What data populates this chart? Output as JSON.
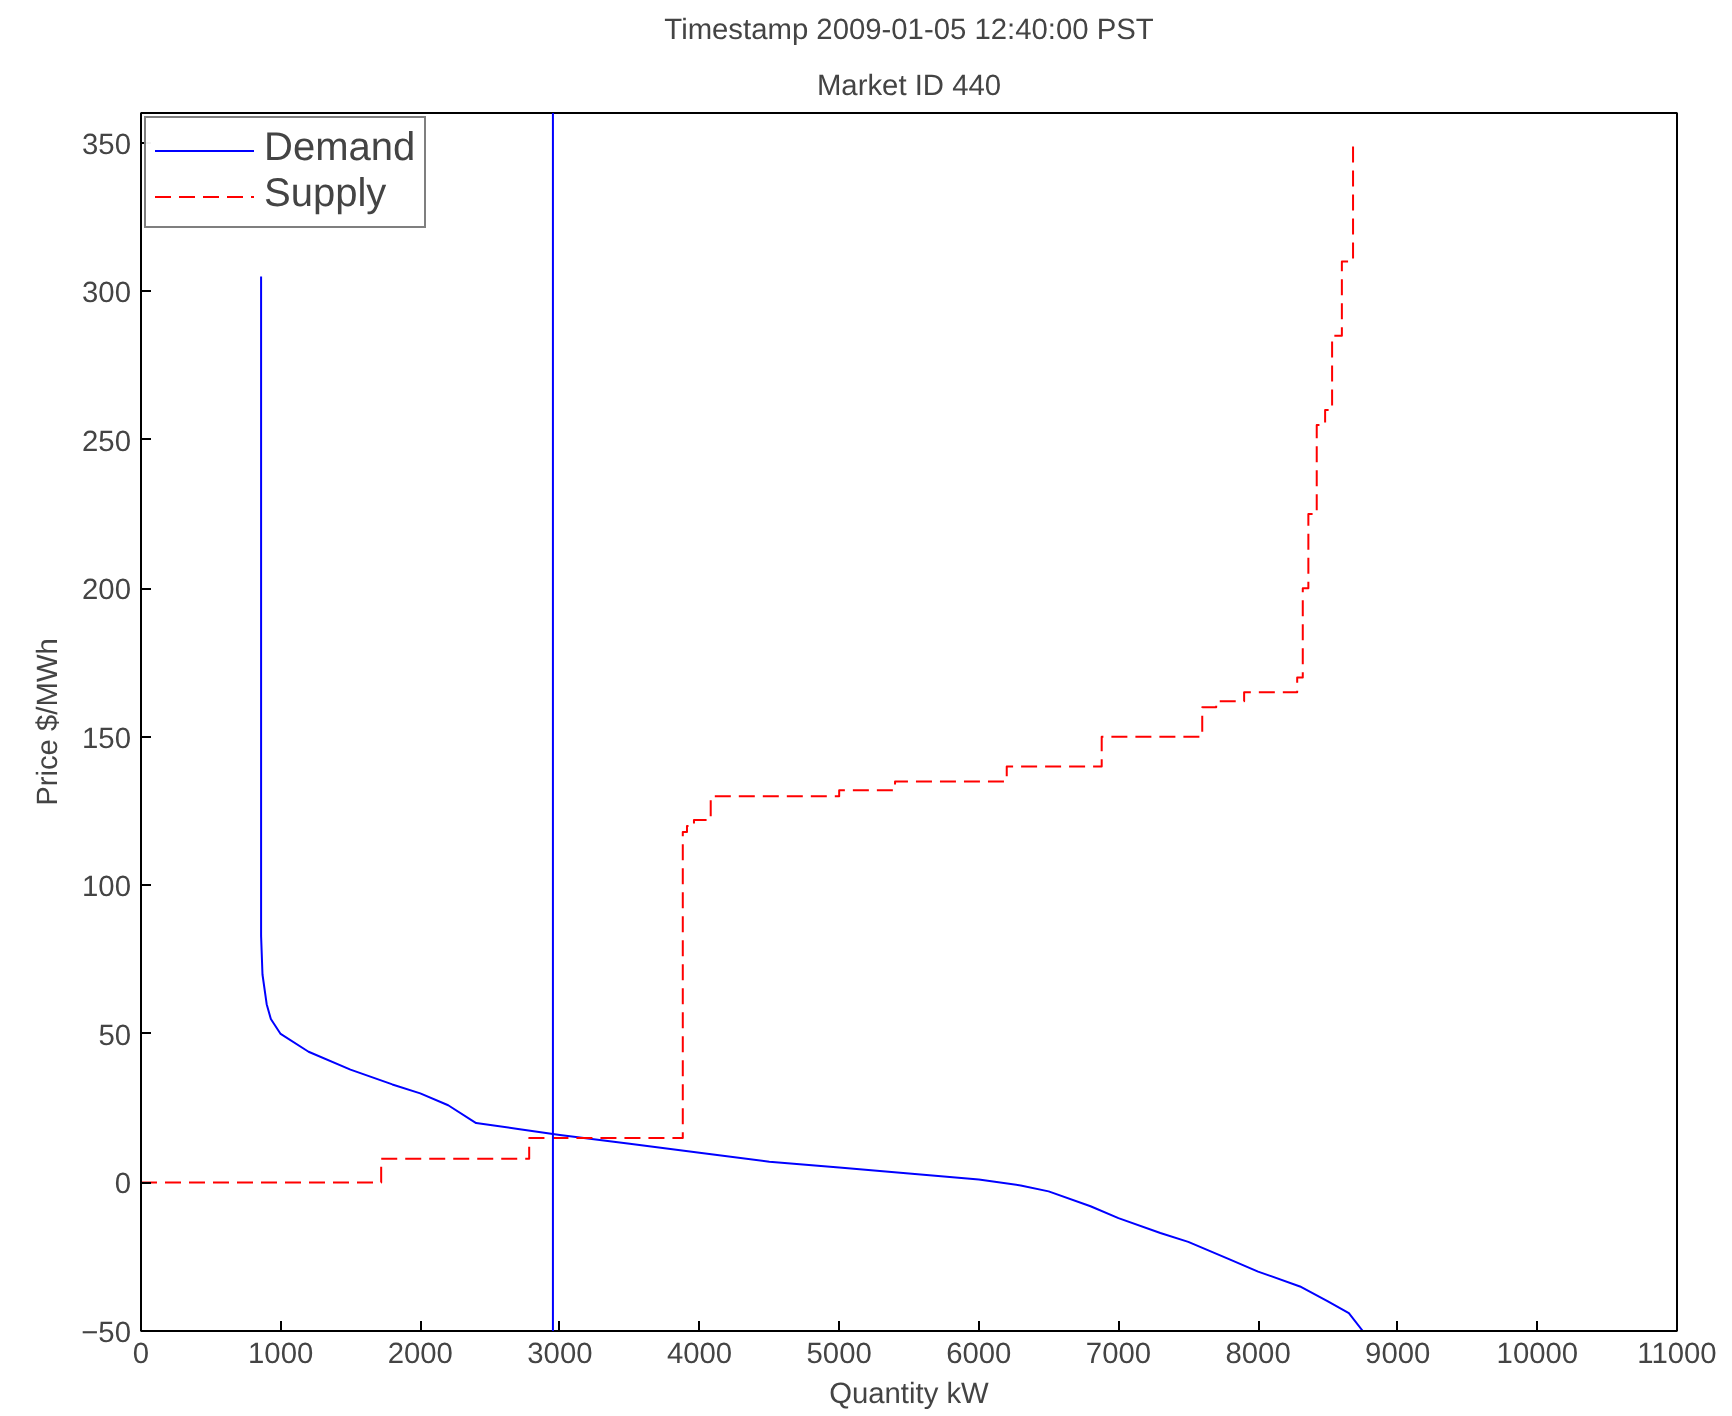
{
  "chart_data": {
    "type": "line",
    "title": "Timestamp 2009-01-05 12:40:00 PST",
    "subtitle": "Market ID 440",
    "xlabel": "Quantity kW",
    "ylabel": "Price $/MWh",
    "xlim": [
      0,
      11000
    ],
    "xticks": [
      0,
      1000,
      2000,
      3000,
      4000,
      5000,
      6000,
      7000,
      8000,
      9000,
      10000,
      11000
    ],
    "ylim": [
      -50,
      360
    ],
    "yticks": [
      -50,
      0,
      50,
      100,
      150,
      200,
      250,
      300,
      350
    ],
    "grid": false,
    "legend": "top left",
    "ref_lines": [
      {
        "axis": "x",
        "value": 2950,
        "color": "#0000ff"
      }
    ],
    "series": [
      {
        "name": "Demand",
        "color": "#0000ff",
        "line_style": "solid",
        "x": [
          860,
          860,
          870,
          900,
          930,
          1000,
          1200,
          1500,
          1800,
          2000,
          2200,
          2400,
          2700,
          3000,
          3500,
          4000,
          4500,
          5000,
          5500,
          6000,
          6300,
          6500,
          6800,
          7000,
          7300,
          7500,
          7800,
          8000,
          8300,
          8500,
          8650,
          8750
        ],
        "values": [
          305,
          83,
          70,
          60,
          55,
          50,
          44,
          38,
          33,
          30,
          26,
          20,
          18,
          16,
          13,
          10,
          7,
          5,
          3,
          1,
          -1,
          -3,
          -8,
          -12,
          -17,
          -20,
          -26,
          -30,
          -35,
          -40,
          -44,
          -50
        ]
      },
      {
        "name": "Supply",
        "type": "step",
        "color": "#ff0000",
        "line_style": "dashed",
        "x": [
          0,
          1720,
          2780,
          3880,
          3910,
          3960,
          4080,
          5000,
          5400,
          6200,
          6880,
          7600,
          7700,
          7900,
          8280,
          8320,
          8360,
          8420,
          8480,
          8530,
          8600,
          8680
        ],
        "values": [
          0,
          8,
          15,
          118,
          120,
          122,
          130,
          132,
          135,
          140,
          150,
          160,
          162,
          165,
          170,
          200,
          225,
          255,
          260,
          285,
          310,
          350
        ]
      }
    ]
  }
}
